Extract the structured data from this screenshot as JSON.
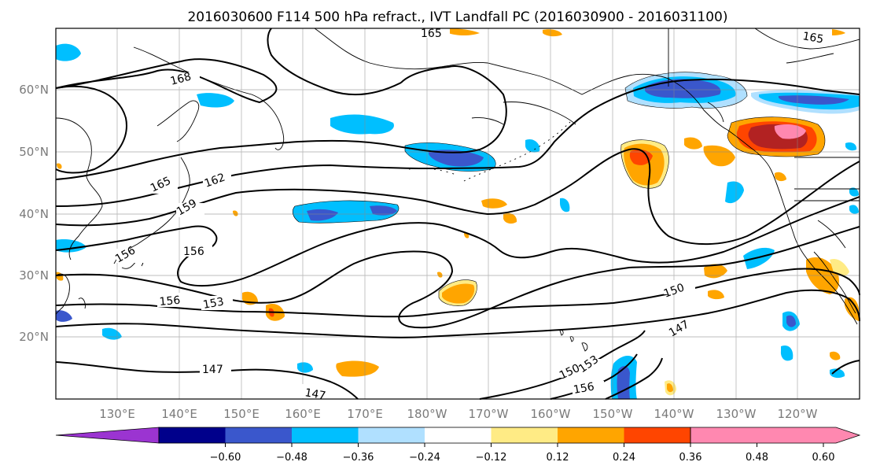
{
  "title": "2016030600 F114 500 hPa refract., IVT Landfall PC (2016030900 - 2016031100)",
  "lat_labels": [
    "60°N",
    "50°N",
    "40°N",
    "30°N",
    "20°N"
  ],
  "lon_labels": [
    "130°E",
    "140°E",
    "150°E",
    "160°E",
    "170°E",
    "180°W",
    "170°W",
    "160°W",
    "150°W",
    "140°W",
    "130°W",
    "120°W"
  ],
  "colorbar": {
    "ticks": [
      "−0.60",
      "−0.48",
      "−0.36",
      "−0.24",
      "−0.12",
      "0.12",
      "0.24",
      "0.36",
      "0.48",
      "0.60"
    ],
    "colors": [
      "#9b34d1",
      "#00008b",
      "#3a57cc",
      "#00bfff",
      "#b0e0ff",
      "#ffffff",
      "#ffeb85",
      "#ffa500",
      "#ff4500",
      "#b22222",
      "#ff88b0"
    ]
  },
  "contour_labels": [
    {
      "text": "168"
    },
    {
      "text": "165"
    },
    {
      "text": "162"
    },
    {
      "text": "159"
    },
    {
      "text": "156"
    },
    {
      "text": "156"
    },
    {
      "text": "153"
    },
    {
      "text": "150"
    },
    {
      "text": "147"
    },
    {
      "text": "147"
    },
    {
      "text": "147"
    },
    {
      "text": "150"
    },
    {
      "text": "153"
    },
    {
      "text": "156"
    },
    {
      "text": "165"
    },
    {
      "text": "165"
    },
    {
      "text": "156"
    }
  ]
}
